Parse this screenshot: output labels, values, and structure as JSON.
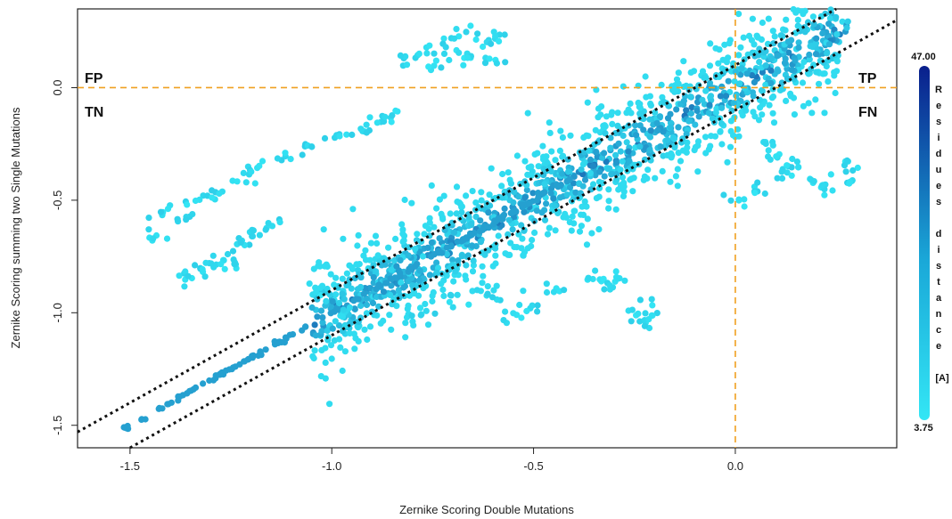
{
  "chart_data": {
    "type": "scatter",
    "title": "",
    "xlabel": "Zernike Scoring Double Mutations",
    "ylabel": "Zernike Scoring summing two Single Mutations",
    "xlim": [
      -1.63,
      0.4
    ],
    "ylim": [
      -1.6,
      0.35
    ],
    "x_ticks": [
      -1.5,
      -1.0,
      -0.5,
      0.0
    ],
    "y_ticks": [
      -1.5,
      -1.0,
      -0.5,
      0.0
    ],
    "x_tick_labels": [
      "-1.5",
      "-1.0",
      "-0.5",
      "0.0"
    ],
    "y_tick_labels": [
      "-1.5",
      "-1.0",
      "-0.5",
      "0.0"
    ],
    "reference_lines": {
      "horizontal_y": 0.0,
      "vertical_x": 0.0,
      "color": "#f0a020",
      "diagonal_offsets": [
        0.1,
        -0.1
      ],
      "diagonal_color": "#111111"
    },
    "quadrant_labels": {
      "top_left": "FP",
      "bottom_left": "TN",
      "top_right": "TP",
      "bottom_right": "FN"
    },
    "colorbar": {
      "max_label": "47.00",
      "min_label": "3.75",
      "label_chars": [
        "R",
        "e",
        "s",
        "i",
        "d",
        "u",
        "e",
        "s",
        "",
        "d",
        "i",
        "s",
        "t",
        "a",
        "n",
        "c",
        "e",
        "",
        "[A]"
      ],
      "color_low": "#33e6f5",
      "color_high": "#0a1f8c"
    },
    "clusters": [
      {
        "name": "main band",
        "x_range": [
          -1.05,
          0.28
        ],
        "slope": 1.0,
        "intercept": 0.0,
        "spread": 0.12,
        "count": 1400
      },
      {
        "name": "exact diagonal",
        "x_range": [
          -1.52,
          -0.4
        ],
        "slope": 1.0,
        "intercept": 0.0,
        "spread": 0.005,
        "count": 160
      },
      {
        "name": "upper left arc",
        "points": [
          [
            -1.45,
            -0.65
          ],
          [
            -1.42,
            -0.55
          ],
          [
            -1.38,
            -0.58
          ],
          [
            -1.33,
            -0.5
          ],
          [
            -1.28,
            -0.48
          ],
          [
            -1.22,
            -0.42
          ],
          [
            -1.18,
            -0.36
          ],
          [
            -1.12,
            -0.3
          ],
          [
            -1.05,
            -0.26
          ],
          [
            -0.98,
            -0.22
          ],
          [
            -0.92,
            -0.18
          ],
          [
            -0.88,
            -0.14
          ],
          [
            -0.85,
            -0.12
          ]
        ]
      },
      {
        "name": "upper cluster",
        "points": [
          [
            -0.82,
            0.12
          ],
          [
            -0.78,
            0.16
          ],
          [
            -0.74,
            0.1
          ],
          [
            -0.7,
            0.18
          ],
          [
            -0.68,
            0.24
          ],
          [
            -0.65,
            0.14
          ],
          [
            -0.62,
            0.22
          ],
          [
            -0.6,
            0.12
          ],
          [
            -0.58,
            0.2
          ]
        ]
      },
      {
        "name": "lower outliers",
        "points": [
          [
            -0.34,
            -0.85
          ],
          [
            -0.32,
            -0.87
          ],
          [
            -0.29,
            -0.86
          ],
          [
            -0.25,
            -1.0
          ],
          [
            -0.23,
            -1.03
          ],
          [
            -0.2,
            -0.99
          ],
          [
            -0.5,
            -0.98
          ],
          [
            -0.45,
            -0.9
          ],
          [
            -0.55,
            -1.02
          ],
          [
            -0.6,
            -0.92
          ],
          [
            -0.7,
            -0.95
          ],
          [
            -0.78,
            -1.0
          ],
          [
            -0.95,
            -1.0
          ],
          [
            -1.03,
            -0.9
          ]
        ]
      },
      {
        "name": "left lower group",
        "points": [
          [
            -1.3,
            -0.8
          ],
          [
            -1.27,
            -0.75
          ],
          [
            -1.25,
            -0.78
          ],
          [
            -1.22,
            -0.7
          ],
          [
            -1.33,
            -0.82
          ],
          [
            -1.2,
            -0.65
          ],
          [
            -1.15,
            -0.62
          ],
          [
            -1.35,
            -0.84
          ]
        ]
      },
      {
        "name": "right outliers",
        "points": [
          [
            0.1,
            -0.3
          ],
          [
            0.12,
            -0.38
          ],
          [
            0.15,
            -0.35
          ],
          [
            0.2,
            -0.42
          ],
          [
            0.22,
            -0.45
          ],
          [
            0.28,
            -0.35
          ],
          [
            0.29,
            -0.41
          ],
          [
            0.0,
            -0.5
          ],
          [
            0.05,
            -0.45
          ],
          [
            0.08,
            -0.25
          ]
        ]
      }
    ]
  }
}
